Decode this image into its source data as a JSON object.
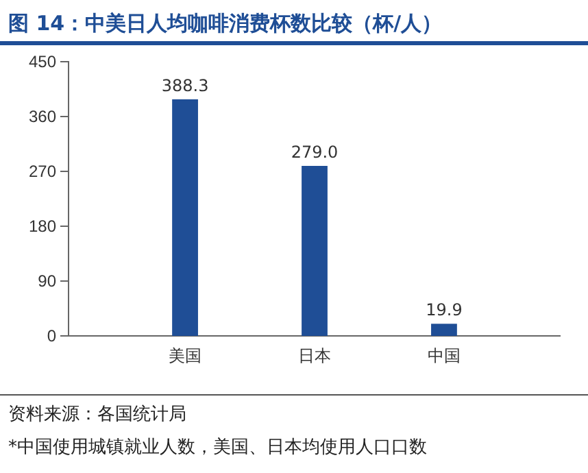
{
  "chart_data": {
    "type": "bar",
    "title": "图 14：中美日人均咖啡消费杯数比较（杯/人）",
    "categories": [
      "美国",
      "日本",
      "中国"
    ],
    "values": [
      388.3,
      279.0,
      19.9
    ],
    "value_labels": [
      "388.3",
      "279.0",
      "19.9"
    ],
    "color": "#1f4e96",
    "ylim": [
      0,
      450
    ],
    "yticks": [
      0,
      90,
      180,
      270,
      360,
      450
    ],
    "grid": false,
    "annotations": [
      "资料来源：各国统计局",
      "*中国使用城镇就业人数，美国、日本均使用人口口数"
    ]
  }
}
